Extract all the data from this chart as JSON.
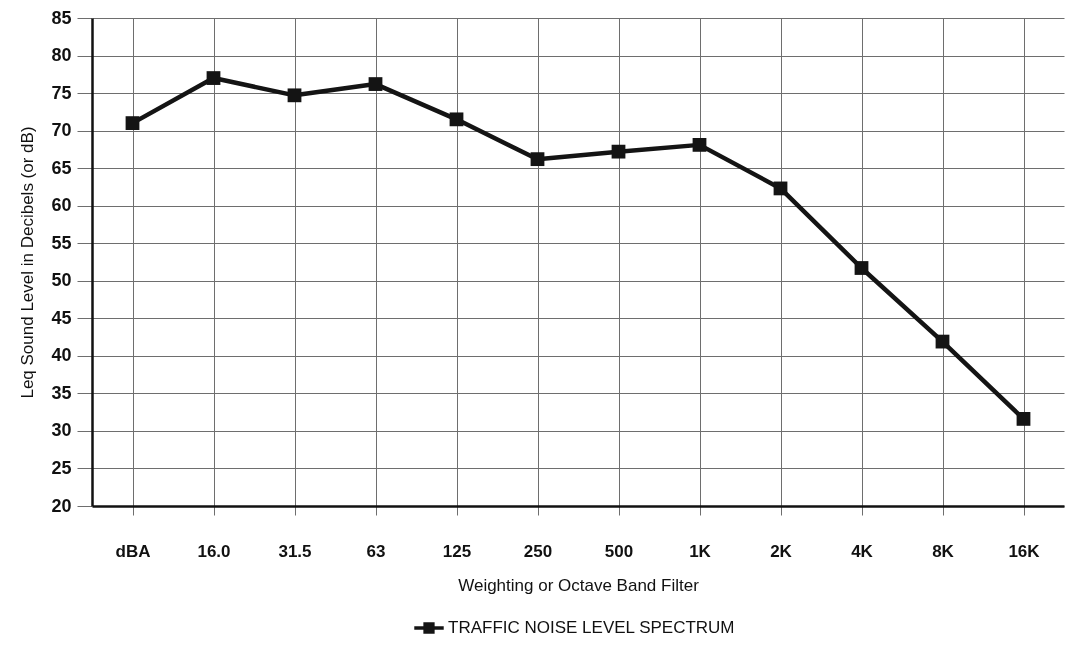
{
  "chart_data": {
    "type": "line",
    "xlabel": "Weighting or Octave Band Filter",
    "ylabel": "Leq Sound Level in Decibels (or dB)",
    "categories": [
      "dBA",
      "16.0",
      "31.5",
      "63",
      "125",
      "250",
      "500",
      "1K",
      "2K",
      "4K",
      "8K",
      "16K"
    ],
    "series": [
      {
        "name": "TRAFFIC NOISE LEVEL SPECTRUM",
        "color": "#141414",
        "values": [
          71,
          77,
          74.7,
          76.2,
          71.5,
          66.2,
          67.2,
          68.1,
          62.3,
          51.7,
          41.9,
          31.6
        ]
      }
    ],
    "ylim": [
      20,
      85
    ],
    "yticks": [
      20,
      25,
      30,
      35,
      40,
      45,
      50,
      55,
      60,
      65,
      70,
      75,
      80,
      85
    ],
    "grid": true,
    "legend": "bottom",
    "marker": "square",
    "line_style": "solid"
  }
}
